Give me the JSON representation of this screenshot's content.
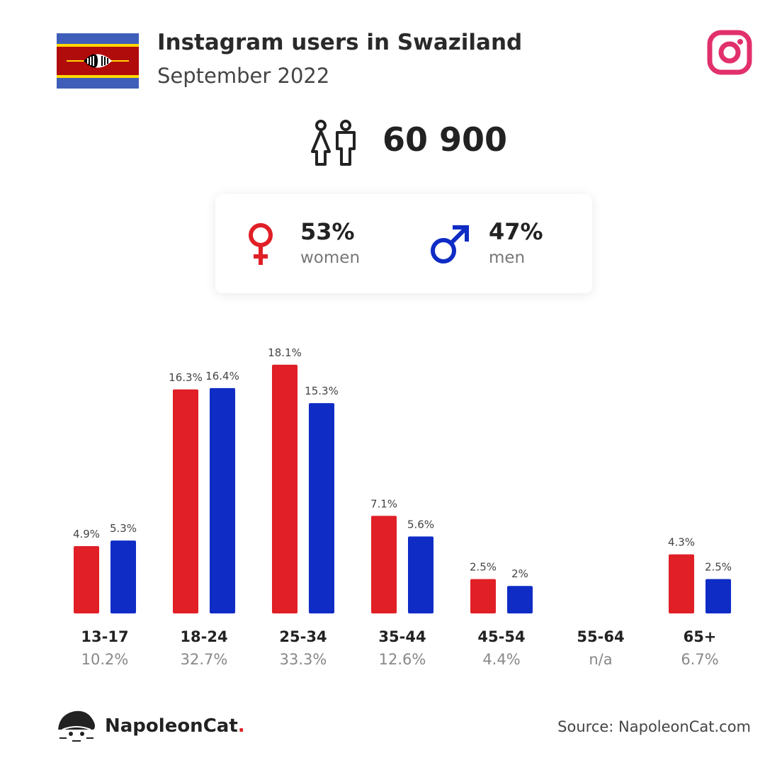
{
  "header": {
    "title": "Instagram users in Swaziland",
    "subtitle": "September 2022"
  },
  "total": {
    "value": "60 900"
  },
  "gender": {
    "women": {
      "pct": "53%",
      "label": "women",
      "color": "#e01f26"
    },
    "men": {
      "pct": "47%",
      "label": "men",
      "color": "#0f2cc5"
    }
  },
  "chart_data": {
    "type": "bar",
    "categories": [
      "13-17",
      "18-24",
      "25-34",
      "35-44",
      "45-54",
      "55-64",
      "65+"
    ],
    "totals": [
      "10.2%",
      "32.7%",
      "33.3%",
      "12.6%",
      "4.4%",
      "n/a",
      "6.7%"
    ],
    "series": [
      {
        "color": "#e01f26",
        "values": [
          4.9,
          16.3,
          18.1,
          7.1,
          2.5,
          null,
          4.3
        ],
        "labels": [
          "4.9%",
          "16.3%",
          "18.1%",
          "7.1%",
          "2.5%",
          "",
          "4.3%"
        ]
      },
      {
        "color": "#0f2cc5",
        "values": [
          5.3,
          16.4,
          15.3,
          5.6,
          2.0,
          null,
          2.5
        ],
        "labels": [
          "5.3%",
          "16.4%",
          "15.3%",
          "5.6%",
          "2%",
          "",
          "2.5%"
        ]
      }
    ]
  },
  "footer": {
    "brand_name": "NapoleonCat",
    "brand_dot": ".",
    "source": "Source: NapoleonCat.com"
  },
  "icons": {
    "flag": "eswatini-flag-icon",
    "instagram": "instagram-icon",
    "people": "people-icon",
    "female": "female-symbol-icon",
    "male": "male-symbol-icon",
    "logo": "napoleoncat-logo-icon"
  }
}
